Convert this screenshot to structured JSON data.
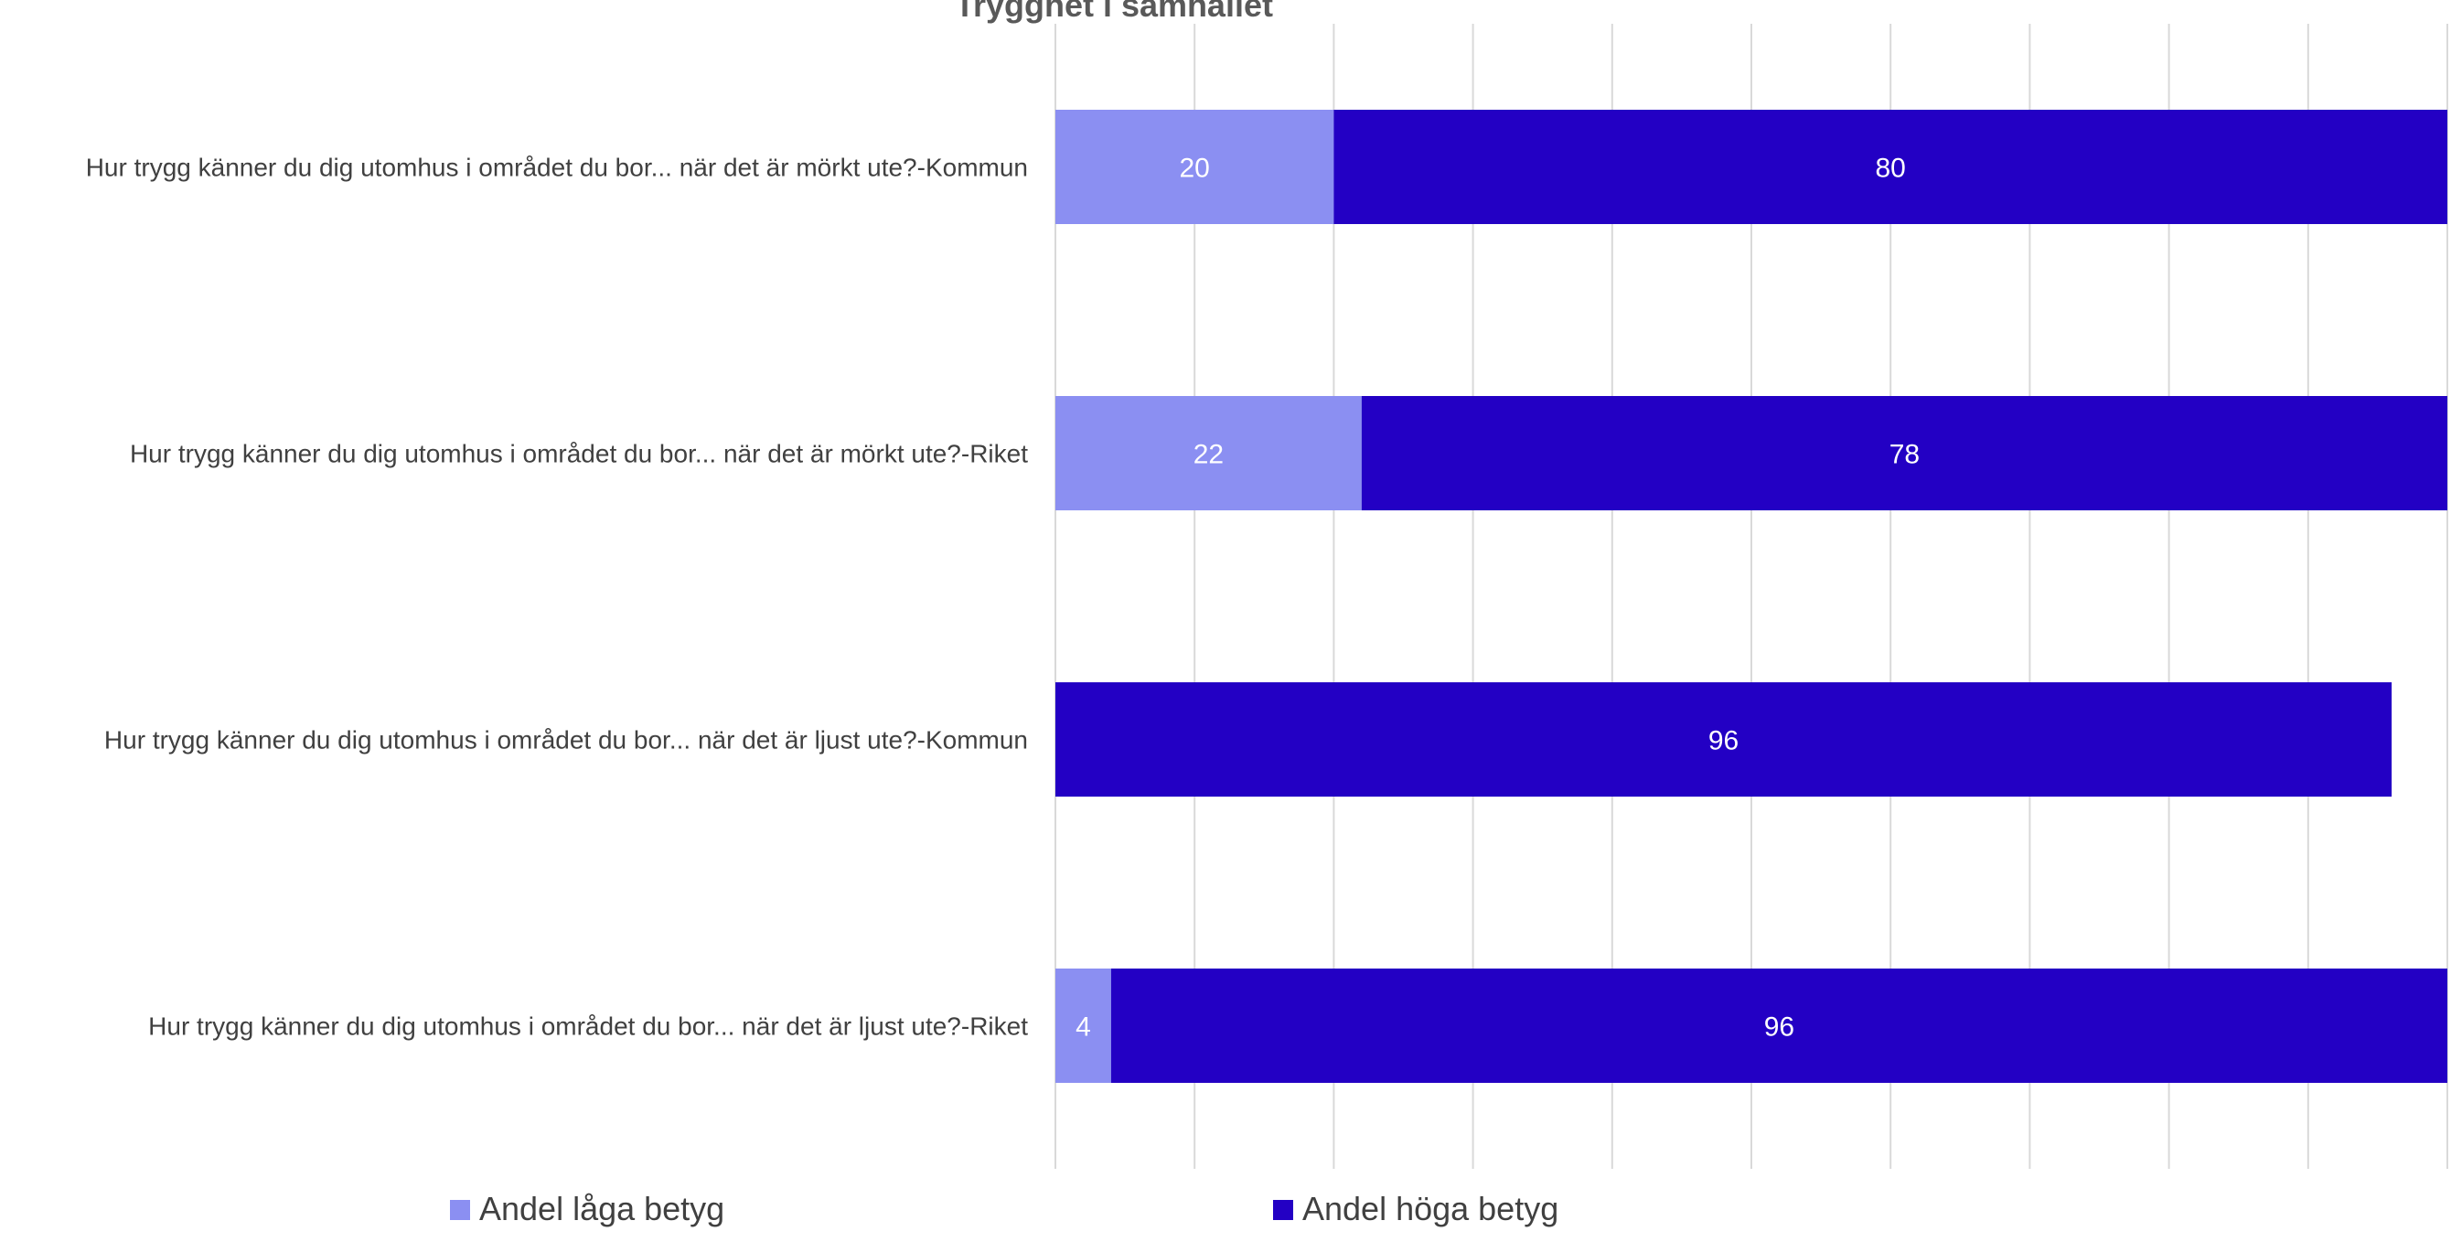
{
  "chart_data": {
    "type": "bar",
    "stacked": true,
    "orientation": "horizontal",
    "title": "Trygghet i samhället",
    "categories": [
      "Hur trygg känner du dig utomhus i området du bor... när det är mörkt ute?-Kommun",
      "Hur trygg känner du dig utomhus i området du bor... när det är mörkt ute?-Riket",
      "Hur trygg känner du dig utomhus i området du bor... när det är ljust ute?-Kommun",
      "Hur trygg känner du dig utomhus i området du bor... när det är ljust ute?-Riket"
    ],
    "series": [
      {
        "name": "Andel låga betyg",
        "color": "#8b8ff2",
        "values": [
          20,
          22,
          0,
          4
        ]
      },
      {
        "name": "Andel höga betyg",
        "color": "#2300c4",
        "values": [
          80,
          78,
          96,
          96
        ]
      }
    ],
    "xlim": [
      0,
      100
    ],
    "grid": true,
    "gridline_color": "#d9d9d9",
    "text_color": "#404040",
    "label_color": "#ffffff",
    "legend_position": "bottom"
  }
}
